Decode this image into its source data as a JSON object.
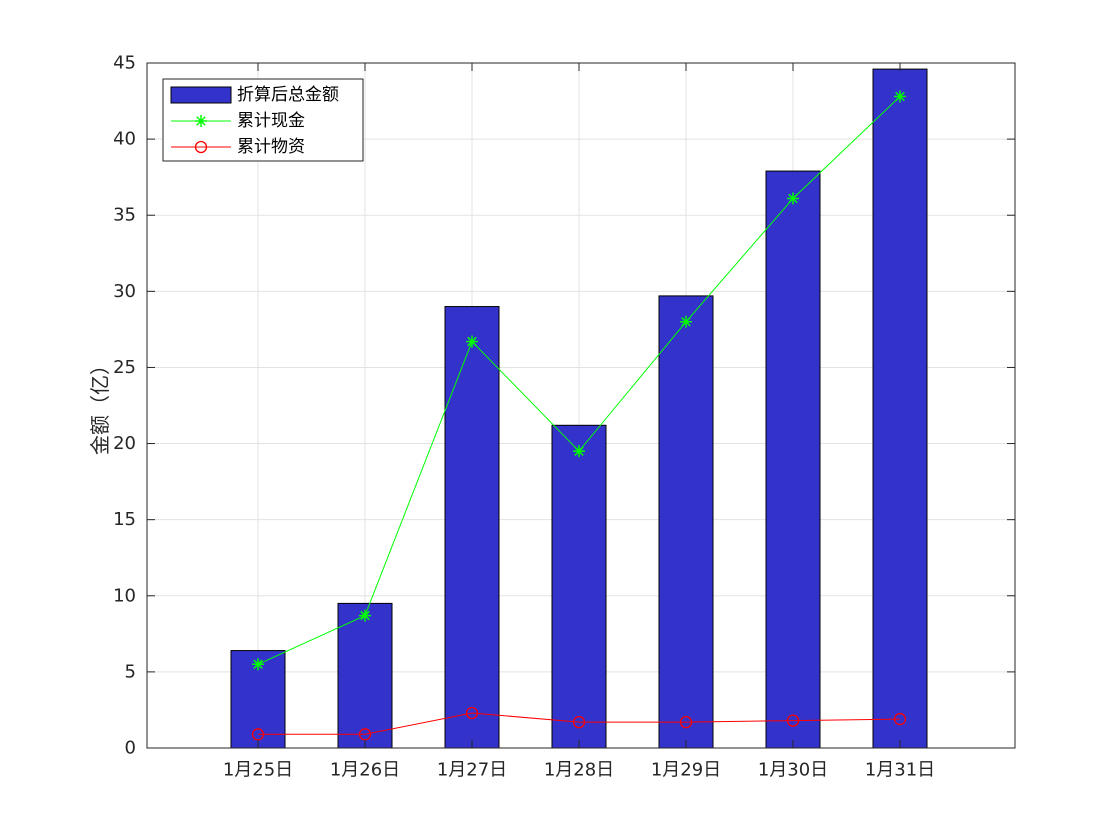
{
  "chart_data": {
    "type": "bar",
    "title": "",
    "xlabel": "",
    "ylabel": "金额（亿）",
    "ylim": [
      0,
      45
    ],
    "yticks": [
      0,
      5,
      10,
      15,
      20,
      25,
      30,
      35,
      40,
      45
    ],
    "grid": true,
    "legend_position": "top-left",
    "categories": [
      "1月25日",
      "1月26日",
      "1月27日",
      "1月28日",
      "1月29日",
      "1月30日",
      "1月31日"
    ],
    "series": [
      {
        "name": "折算后总金额",
        "kind": "bar",
        "color": "#3333CC",
        "values": [
          6.4,
          9.5,
          29.0,
          21.2,
          29.7,
          37.9,
          44.6
        ]
      },
      {
        "name": "累计现金",
        "kind": "line",
        "marker": "asterisk",
        "color": "#00FF00",
        "values": [
          5.5,
          8.7,
          26.7,
          19.5,
          28.0,
          36.1,
          42.8
        ]
      },
      {
        "name": "累计物资",
        "kind": "line",
        "marker": "circle",
        "color": "#FF0000",
        "values": [
          0.9,
          0.9,
          2.3,
          1.7,
          1.7,
          1.8,
          1.9
        ]
      }
    ]
  }
}
